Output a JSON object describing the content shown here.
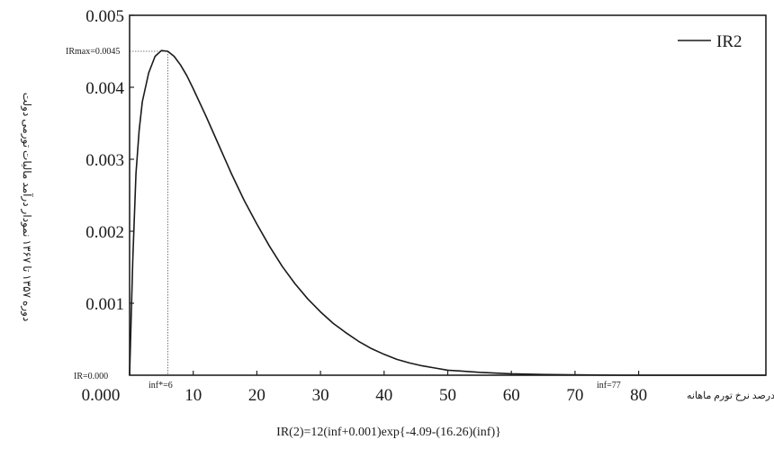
{
  "chart_data": {
    "type": "line",
    "y_axis_label": "دوره ۱۳۵۷ تا ۱۳۶۷ نمودار درآمد مالیات تورمی دولت",
    "x_axis_label": "درصد نرخ تورم ماهانه",
    "formula": "IR(2)=12(inf+0.001)exp{-4.09-(16.26)(inf)}",
    "legend": {
      "label": "IR2",
      "position": "top-right"
    },
    "xlim": [
      0,
      100
    ],
    "ylim": [
      0,
      0.005
    ],
    "x_ticks": [
      {
        "value": 0,
        "label": "0.000"
      },
      {
        "value": 10,
        "label": "10"
      },
      {
        "value": 20,
        "label": "20"
      },
      {
        "value": 30,
        "label": "30"
      },
      {
        "value": 40,
        "label": "40"
      },
      {
        "value": 50,
        "label": "50"
      },
      {
        "value": 60,
        "label": "60"
      },
      {
        "value": 70,
        "label": "70"
      },
      {
        "value": 80,
        "label": "80"
      }
    ],
    "y_ticks": [
      {
        "value": 0.005,
        "label": "0.005"
      },
      {
        "value": 0.004,
        "label": "0.004"
      },
      {
        "value": 0.003,
        "label": "0.003"
      },
      {
        "value": 0.002,
        "label": "0.002"
      },
      {
        "value": 0.001,
        "label": "0.001"
      }
    ],
    "annotations": {
      "ir_max": {
        "label": "IRmax=0.0045",
        "x": 6,
        "y": 0.0045
      },
      "ir_zero": {
        "label": "IR=0.000",
        "x": 0,
        "y": 0
      },
      "inf_star": {
        "label": "inf*=6",
        "x": 6,
        "y": 0
      },
      "inf_77": {
        "label": "inf=77",
        "x": 77,
        "y": 0
      }
    },
    "series": [
      {
        "name": "IR2",
        "color": "#1a1a1a",
        "x": [
          0,
          0.5,
          1,
          1.5,
          2,
          3,
          4,
          5,
          6,
          7,
          8,
          9,
          10,
          12,
          14,
          16,
          18,
          20,
          22,
          24,
          26,
          28,
          30,
          32,
          34,
          36,
          38,
          40,
          42,
          44,
          46,
          48,
          50,
          55,
          60,
          65,
          70,
          77,
          80,
          90,
          100
        ],
        "y": [
          0,
          0.0016,
          0.0028,
          0.0034,
          0.0038,
          0.0042,
          0.00443,
          0.00451,
          0.0045,
          0.00443,
          0.00431,
          0.00416,
          0.00398,
          0.0036,
          0.0032,
          0.0028,
          0.00243,
          0.0021,
          0.00179,
          0.00151,
          0.00127,
          0.00106,
          0.00088,
          0.00072,
          0.00059,
          0.00047,
          0.00037,
          0.00029,
          0.00022,
          0.00017,
          0.00013,
          0.0001,
          7e-05,
          4e-05,
          2e-05,
          1e-05,
          5e-06,
          0,
          0,
          0,
          0
        ]
      }
    ]
  }
}
